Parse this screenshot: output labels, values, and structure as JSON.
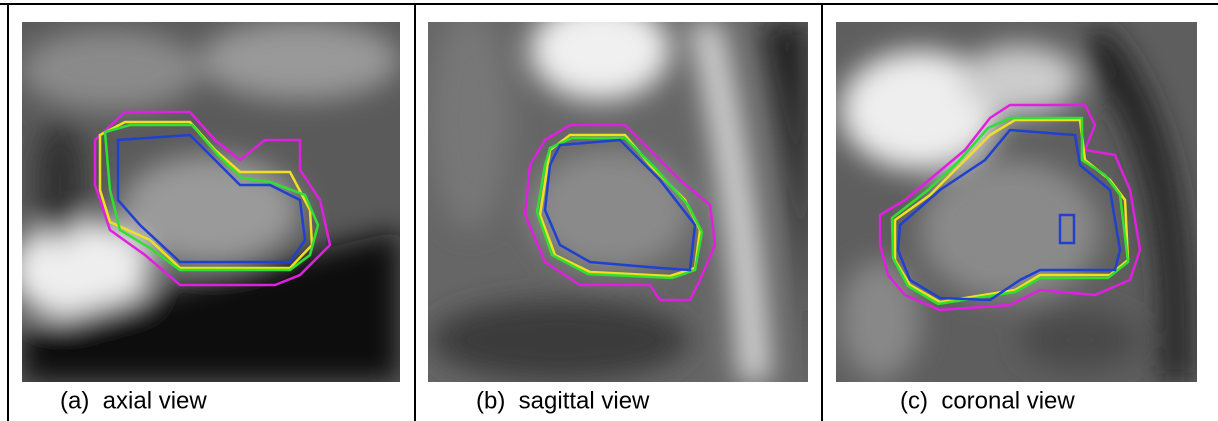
{
  "panels": [
    {
      "caption": "(a)  axial view"
    },
    {
      "caption": "(b)  sagittal view"
    },
    {
      "caption": "(c)  coronal view"
    }
  ]
}
